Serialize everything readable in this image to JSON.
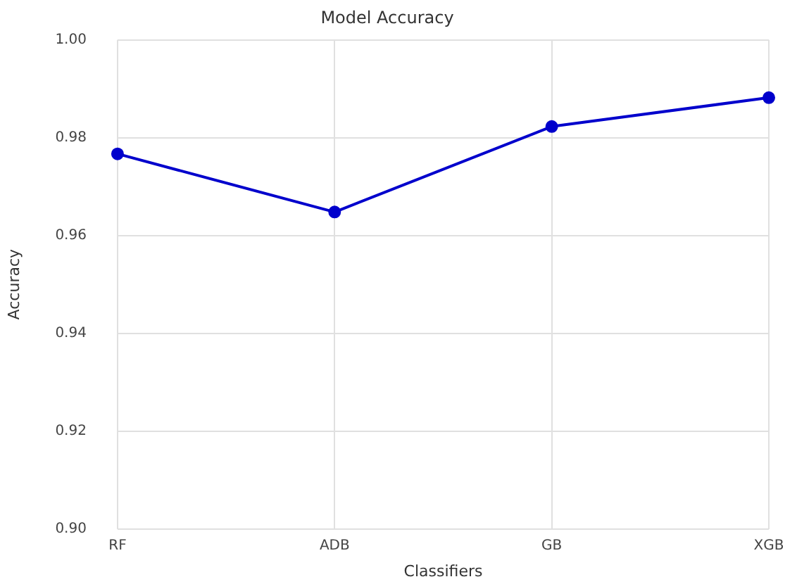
{
  "chart_data": {
    "type": "line",
    "title": "Model Accuracy",
    "xlabel": "Classifiers",
    "ylabel": "Accuracy",
    "categories": [
      "RF",
      "ADB",
      "GB",
      "XGB"
    ],
    "series": [
      {
        "color": "#0000cc",
        "values": [
          0.9767,
          0.9648,
          0.9823,
          0.9882
        ]
      }
    ],
    "ylim": [
      0.9,
      1.0
    ],
    "yticks": [
      {
        "value": 0.9,
        "label": "0.90"
      },
      {
        "value": 0.92,
        "label": "0.92"
      },
      {
        "value": 0.94,
        "label": "0.94"
      },
      {
        "value": 0.96,
        "label": "0.96"
      },
      {
        "value": 0.98,
        "label": "0.98"
      },
      {
        "value": 1.0,
        "label": "1.00"
      }
    ],
    "grid": true,
    "marker": "circle",
    "line_style": "solid",
    "legend": false
  }
}
